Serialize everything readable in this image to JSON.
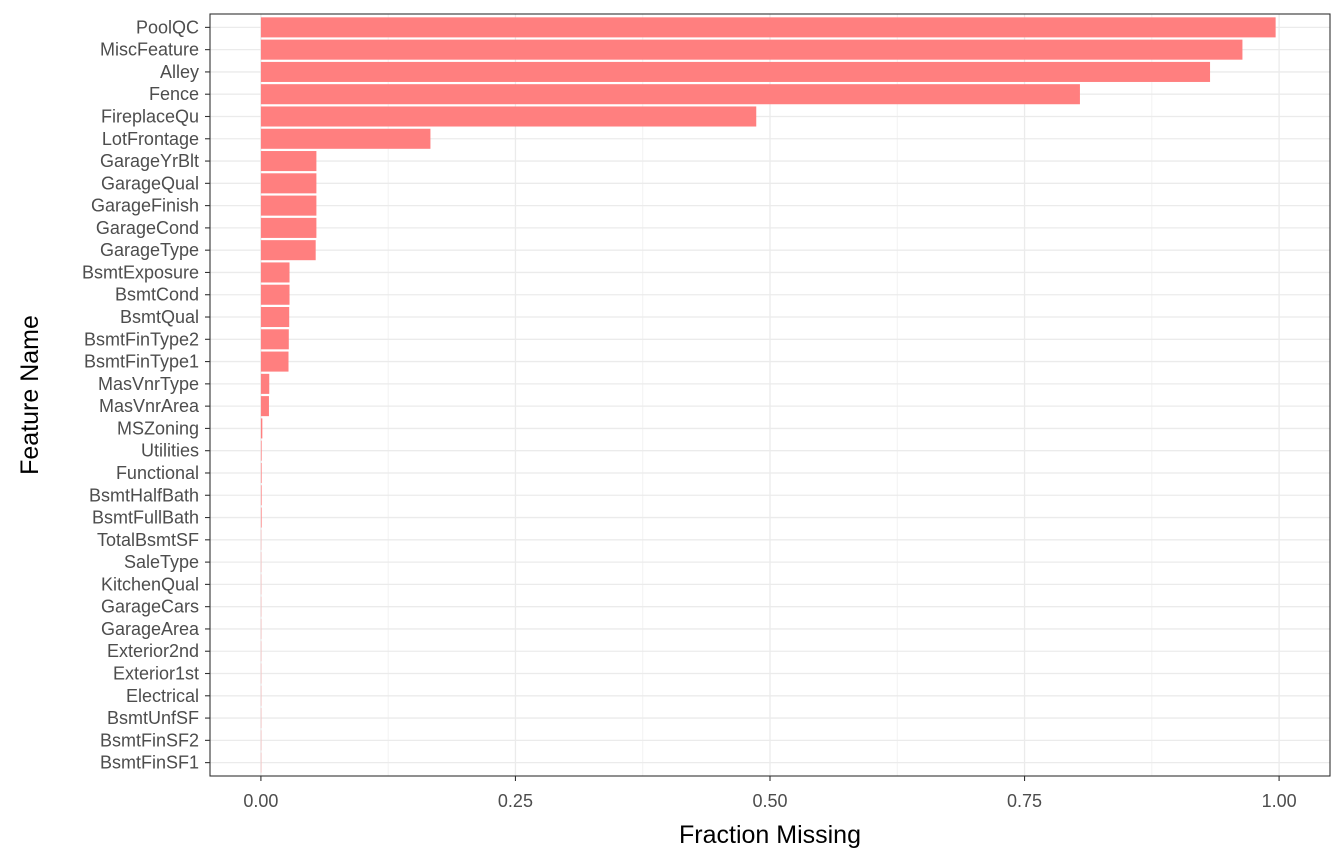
{
  "chart_data": {
    "type": "bar",
    "orientation": "horizontal",
    "xlabel": "Fraction Missing",
    "ylabel": "Feature Name",
    "xlim": [
      -0.05,
      1.05
    ],
    "xticks": [
      0.0,
      0.25,
      0.5,
      0.75,
      1.0
    ],
    "xtick_labels": [
      "0.00",
      "0.25",
      "0.50",
      "0.75",
      "1.00"
    ],
    "grid": true,
    "legend": "none",
    "bar_color": "#FF7F7F",
    "categories": [
      "PoolQC",
      "MiscFeature",
      "Alley",
      "Fence",
      "FireplaceQu",
      "LotFrontage",
      "GarageYrBlt",
      "GarageQual",
      "GarageFinish",
      "GarageCond",
      "GarageType",
      "BsmtExposure",
      "BsmtCond",
      "BsmtQual",
      "BsmtFinType2",
      "BsmtFinType1",
      "MasVnrType",
      "MasVnrArea",
      "MSZoning",
      "Utilities",
      "Functional",
      "BsmtHalfBath",
      "BsmtFullBath",
      "TotalBsmtSF",
      "SaleType",
      "KitchenQual",
      "GarageCars",
      "GarageArea",
      "Exterior2nd",
      "Exterior1st",
      "Electrical",
      "BsmtUnfSF",
      "BsmtFinSF2",
      "BsmtFinSF1"
    ],
    "values": [
      0.9966,
      0.964,
      0.9322,
      0.8044,
      0.4865,
      0.1665,
      0.0545,
      0.0545,
      0.0545,
      0.0545,
      0.0538,
      0.0281,
      0.0281,
      0.0278,
      0.0274,
      0.0271,
      0.0082,
      0.0079,
      0.0014,
      0.0007,
      0.0007,
      0.0007,
      0.0007,
      0.0003,
      0.0003,
      0.0003,
      0.0003,
      0.0003,
      0.0003,
      0.0003,
      0.0003,
      0.0003,
      0.0003,
      0.0003
    ]
  }
}
